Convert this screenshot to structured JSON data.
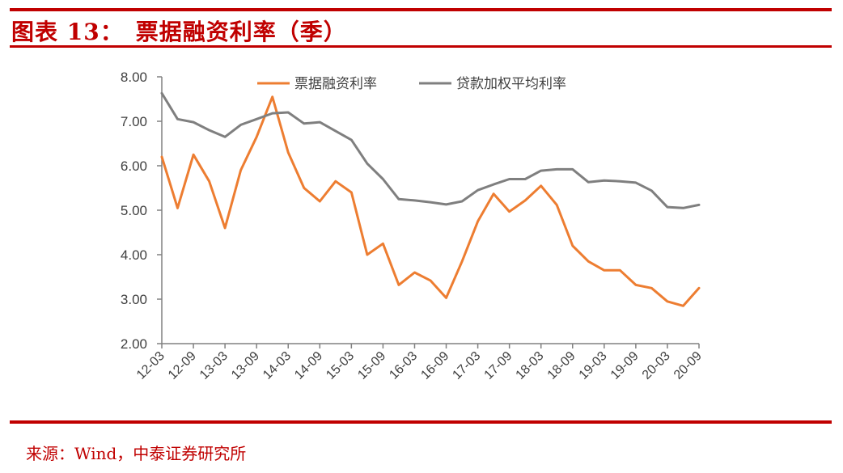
{
  "header": {
    "title": "图表 13：　票据融资利率（季）"
  },
  "footer": {
    "source": "来源：Wind，中泰证券研究所"
  },
  "colors": {
    "accent": "#c00000",
    "series_1": "#ed7d31",
    "series_2": "#7f7f7f",
    "axis": "#808080"
  },
  "chart_data": {
    "type": "line",
    "title": "",
    "xlabel": "",
    "ylabel": "",
    "ylim": [
      2.0,
      8.0
    ],
    "yticks": [
      "2.00",
      "3.00",
      "4.00",
      "5.00",
      "6.00",
      "7.00",
      "8.00"
    ],
    "legend_position": "top",
    "grid": false,
    "x": [
      "12-03",
      "12-06",
      "12-09",
      "12-12",
      "13-03",
      "13-06",
      "13-09",
      "13-12",
      "14-03",
      "14-06",
      "14-09",
      "14-12",
      "15-03",
      "15-06",
      "15-09",
      "15-12",
      "16-03",
      "16-06",
      "16-09",
      "16-12",
      "17-03",
      "17-06",
      "17-09",
      "17-12",
      "18-03",
      "18-06",
      "18-09",
      "18-12",
      "19-03",
      "19-06",
      "19-09",
      "19-12",
      "20-03",
      "20-06",
      "20-09"
    ],
    "xtick_labels": [
      "12-03",
      "12-09",
      "13-03",
      "13-09",
      "14-03",
      "14-09",
      "15-03",
      "15-09",
      "16-03",
      "16-09",
      "17-03",
      "17-09",
      "18-03",
      "18-09",
      "19-03",
      "19-09",
      "20-03",
      "20-09"
    ],
    "series": [
      {
        "name": "票据融资利率",
        "values": [
          6.2,
          5.05,
          6.25,
          5.65,
          4.6,
          5.9,
          6.65,
          7.55,
          6.3,
          5.5,
          5.2,
          5.65,
          5.4,
          4.0,
          4.25,
          3.32,
          3.6,
          3.42,
          3.03,
          3.85,
          4.75,
          5.37,
          4.97,
          5.22,
          5.55,
          5.12,
          4.2,
          3.85,
          3.65,
          3.65,
          3.32,
          3.25,
          2.95,
          2.85,
          3.25
        ]
      },
      {
        "name": "贷款加权平均利率",
        "values": [
          7.63,
          7.05,
          6.98,
          6.8,
          6.65,
          6.92,
          7.05,
          7.18,
          7.2,
          6.95,
          6.98,
          6.78,
          6.58,
          6.05,
          5.7,
          5.25,
          5.22,
          5.18,
          5.13,
          5.2,
          5.45,
          5.58,
          5.7,
          5.7,
          5.89,
          5.92,
          5.92,
          5.63,
          5.67,
          5.65,
          5.62,
          5.44,
          5.07,
          5.05,
          5.12
        ]
      }
    ]
  }
}
